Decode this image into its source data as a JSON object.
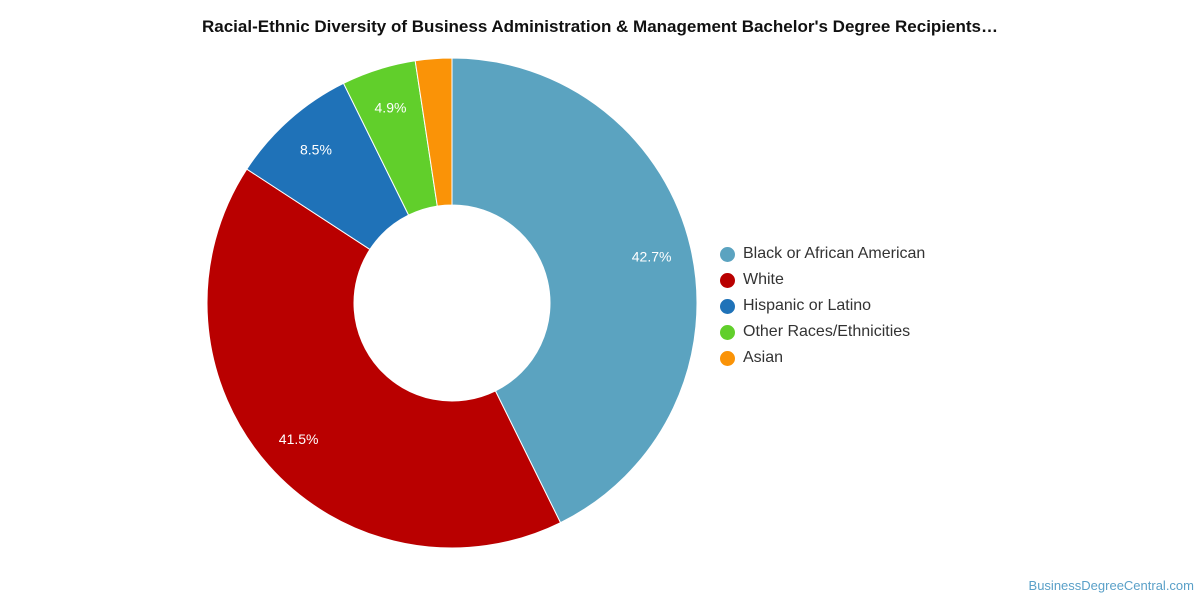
{
  "chart_data": {
    "type": "pie",
    "title": "Racial-Ethnic Diversity of Business Administration & Management Bachelor's Degree Recipients…",
    "donut": true,
    "legend_position": "right",
    "slices": [
      {
        "label": "Black or African American",
        "value": 42.7,
        "value_label": "42.7%",
        "color": "#5ba3c0"
      },
      {
        "label": "White",
        "value": 41.5,
        "value_label": "41.5%",
        "color": "#b90000"
      },
      {
        "label": "Hispanic or Latino",
        "value": 8.5,
        "value_label": "8.5%",
        "color": "#1f72b8"
      },
      {
        "label": "Other Races/Ethnicities",
        "value": 4.9,
        "value_label": "4.9%",
        "color": "#61cf2b"
      },
      {
        "label": "Asian",
        "value": 2.4,
        "value_label": "",
        "color": "#fa9307"
      }
    ]
  },
  "footer": {
    "source": "BusinessDegreeCentral.com"
  }
}
